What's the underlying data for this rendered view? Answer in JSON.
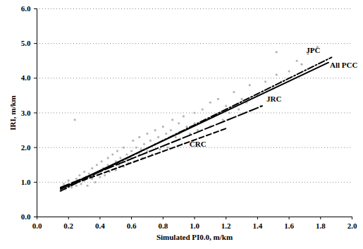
{
  "chart_data": {
    "type": "scatter",
    "xlabel": "Simulated PI0.0, m/km",
    "ylabel": "IRI, m/km",
    "xlim": [
      0,
      2
    ],
    "ylim": [
      0,
      6
    ],
    "xticks": [
      {
        "value": 0,
        "label": "0.0"
      },
      0.2,
      0.4,
      0.6,
      0.8,
      {
        "value": 1,
        "label": "1.0"
      },
      1.2,
      1.4,
      1.6,
      1.8,
      {
        "value": 2,
        "label": "2.0"
      }
    ],
    "yticks": [
      {
        "value": 0,
        "label": "0.0"
      },
      {
        "value": 1,
        "label": "1.0"
      },
      {
        "value": 2,
        "label": "2.0"
      },
      {
        "value": 3,
        "label": "3.0"
      },
      {
        "value": 4,
        "label": "4.0"
      },
      {
        "value": 5,
        "label": "5.0"
      },
      {
        "value": 6,
        "label": "6.0"
      }
    ],
    "grid": "y",
    "series": [
      {
        "type": "scatter",
        "marker": "circle",
        "color": "#b4b4b4",
        "x": [
          0.15,
          0.17,
          0.18,
          0.2,
          0.2,
          0.22,
          0.23,
          0.25,
          0.25,
          0.27,
          0.28,
          0.3,
          0.3,
          0.31,
          0.32,
          0.33,
          0.35,
          0.35,
          0.36,
          0.37,
          0.38,
          0.4,
          0.4,
          0.41,
          0.42,
          0.43,
          0.45,
          0.45,
          0.46,
          0.47,
          0.48,
          0.5,
          0.5,
          0.51,
          0.52,
          0.53,
          0.55,
          0.55,
          0.56,
          0.57,
          0.58,
          0.6,
          0.6,
          0.61,
          0.62,
          0.63,
          0.65,
          0.65,
          0.66,
          0.67,
          0.68,
          0.7,
          0.7,
          0.72,
          0.73,
          0.75,
          0.75,
          0.77,
          0.78,
          0.8,
          0.8,
          0.82,
          0.83,
          0.85,
          0.86,
          0.88,
          0.9,
          0.9,
          0.92,
          0.93,
          0.95,
          0.97,
          1.0,
          1.0,
          1.02,
          1.05,
          1.07,
          1.1,
          1.1,
          1.12,
          1.15,
          1.18,
          1.2,
          1.22,
          1.25,
          1.28,
          1.3,
          1.33,
          1.35,
          1.4,
          1.42,
          1.45,
          1.5,
          1.52,
          1.55,
          1.6,
          1.65,
          1.68,
          1.72,
          1.75,
          1.78,
          0.24,
          1.52
        ],
        "values": [
          0.75,
          0.95,
          0.8,
          0.9,
          1.05,
          0.85,
          1.0,
          1.1,
          0.9,
          1.2,
          0.95,
          1.05,
          1.3,
          1.15,
          0.9,
          1.25,
          1.4,
          1.1,
          1.2,
          1.0,
          1.5,
          1.3,
          1.15,
          1.6,
          1.4,
          1.2,
          1.5,
          1.7,
          1.3,
          1.45,
          1.8,
          1.6,
          1.35,
          1.9,
          1.5,
          1.7,
          1.45,
          2.0,
          1.6,
          1.8,
          1.55,
          1.9,
          1.7,
          2.2,
          1.6,
          2.0,
          1.8,
          2.3,
          1.95,
          1.7,
          2.1,
          2.4,
          1.9,
          2.2,
          1.8,
          2.1,
          2.5,
          2.3,
          1.95,
          2.6,
          2.2,
          2.4,
          2.0,
          2.5,
          2.8,
          2.3,
          2.7,
          2.4,
          2.1,
          2.9,
          2.6,
          2.4,
          3.0,
          2.7,
          2.5,
          3.1,
          2.8,
          3.3,
          2.6,
          2.9,
          3.4,
          2.8,
          3.2,
          3.0,
          3.6,
          3.1,
          3.4,
          3.3,
          3.8,
          3.5,
          3.2,
          3.9,
          3.7,
          4.1,
          3.9,
          4.2,
          4.5,
          4.4,
          4.7,
          4.8,
          4.9,
          2.8,
          4.75
        ]
      },
      {
        "name": "JPC",
        "type": "line",
        "line_style": "dashdot",
        "color": "#000000",
        "x": [
          0.15,
          1.87
        ],
        "values": [
          0.75,
          4.6
        ]
      },
      {
        "name": "All PCC",
        "type": "line",
        "line_style": "solid",
        "color": "#000000",
        "x": [
          0.15,
          1.85
        ],
        "values": [
          0.8,
          4.45
        ]
      },
      {
        "name": "JRC",
        "type": "line",
        "line_style": "longdash",
        "color": "#000000",
        "x": [
          0.15,
          1.43
        ],
        "values": [
          0.85,
          3.2
        ]
      },
      {
        "name": "CRC",
        "type": "line",
        "line_style": "dashed",
        "color": "#000000",
        "x": [
          0.15,
          1.2
        ],
        "values": [
          0.82,
          2.55
        ]
      }
    ]
  }
}
